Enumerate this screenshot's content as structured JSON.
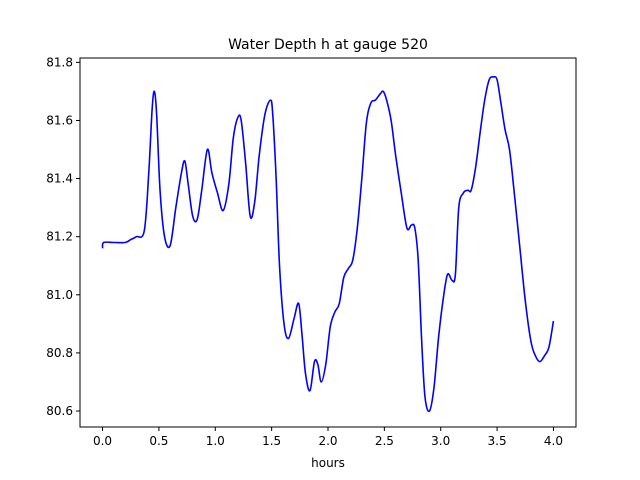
{
  "chart_data": {
    "type": "line",
    "title": "Water Depth h at gauge 520",
    "xlabel": "hours",
    "ylabel": "",
    "xlim": [
      -0.2,
      4.2
    ],
    "ylim": [
      80.545,
      81.815
    ],
    "xticks": [
      0.0,
      0.5,
      1.0,
      1.5,
      2.0,
      2.5,
      3.0,
      3.5,
      4.0
    ],
    "xtick_labels": [
      "0.0",
      "0.5",
      "1.0",
      "1.5",
      "2.0",
      "2.5",
      "3.0",
      "3.5",
      "4.0"
    ],
    "yticks": [
      80.6,
      80.8,
      81.0,
      81.2,
      81.4,
      81.6,
      81.8
    ],
    "ytick_labels": [
      "80.6",
      "80.8",
      "81.0",
      "81.2",
      "81.4",
      "81.6",
      "81.8"
    ],
    "grid": false,
    "legend": "none",
    "series": [
      {
        "color": "#0000ff",
        "x": [
          0.0,
          0.01,
          0.1,
          0.2,
          0.25,
          0.3,
          0.37,
          0.41,
          0.44,
          0.46,
          0.48,
          0.51,
          0.55,
          0.6,
          0.65,
          0.7,
          0.73,
          0.76,
          0.8,
          0.84,
          0.88,
          0.93,
          0.97,
          1.02,
          1.07,
          1.12,
          1.16,
          1.2,
          1.23,
          1.27,
          1.31,
          1.35,
          1.39,
          1.44,
          1.49,
          1.51,
          1.54,
          1.57,
          1.61,
          1.65,
          1.7,
          1.74,
          1.77,
          1.8,
          1.84,
          1.88,
          1.91,
          1.94,
          1.98,
          2.02,
          2.06,
          2.1,
          2.14,
          2.18,
          2.22,
          2.26,
          2.3,
          2.34,
          2.38,
          2.42,
          2.46,
          2.49,
          2.52,
          2.56,
          2.6,
          2.65,
          2.7,
          2.74,
          2.77,
          2.8,
          2.83,
          2.86,
          2.9,
          2.94,
          2.98,
          3.02,
          3.06,
          3.1,
          3.13,
          3.16,
          3.2,
          3.24,
          3.27,
          3.31,
          3.35,
          3.39,
          3.43,
          3.47,
          3.5,
          3.53,
          3.57,
          3.61,
          3.65,
          3.7,
          3.75,
          3.8,
          3.84,
          3.88,
          3.92,
          3.96,
          4.0
        ],
        "y": [
          81.16,
          81.18,
          81.18,
          81.18,
          81.19,
          81.2,
          81.22,
          81.42,
          81.64,
          81.7,
          81.62,
          81.36,
          81.2,
          81.17,
          81.3,
          81.42,
          81.46,
          81.38,
          81.27,
          81.26,
          81.36,
          81.5,
          81.42,
          81.35,
          81.29,
          81.38,
          81.54,
          81.61,
          81.6,
          81.45,
          81.27,
          81.32,
          81.48,
          81.62,
          81.67,
          81.62,
          81.4,
          81.1,
          80.9,
          80.85,
          80.92,
          80.97,
          80.86,
          80.73,
          80.67,
          80.77,
          80.76,
          80.7,
          80.76,
          80.89,
          80.94,
          80.97,
          81.06,
          81.09,
          81.12,
          81.23,
          81.4,
          81.59,
          81.66,
          81.67,
          81.69,
          81.7,
          81.67,
          81.6,
          81.48,
          81.35,
          81.23,
          81.24,
          81.23,
          81.12,
          80.85,
          80.65,
          80.6,
          80.68,
          80.85,
          80.98,
          81.07,
          81.05,
          81.07,
          81.3,
          81.35,
          81.36,
          81.36,
          81.44,
          81.56,
          81.67,
          81.74,
          81.75,
          81.74,
          81.67,
          81.57,
          81.5,
          81.36,
          81.17,
          80.98,
          80.84,
          80.79,
          80.77,
          80.79,
          80.82,
          80.91
        ]
      }
    ]
  }
}
